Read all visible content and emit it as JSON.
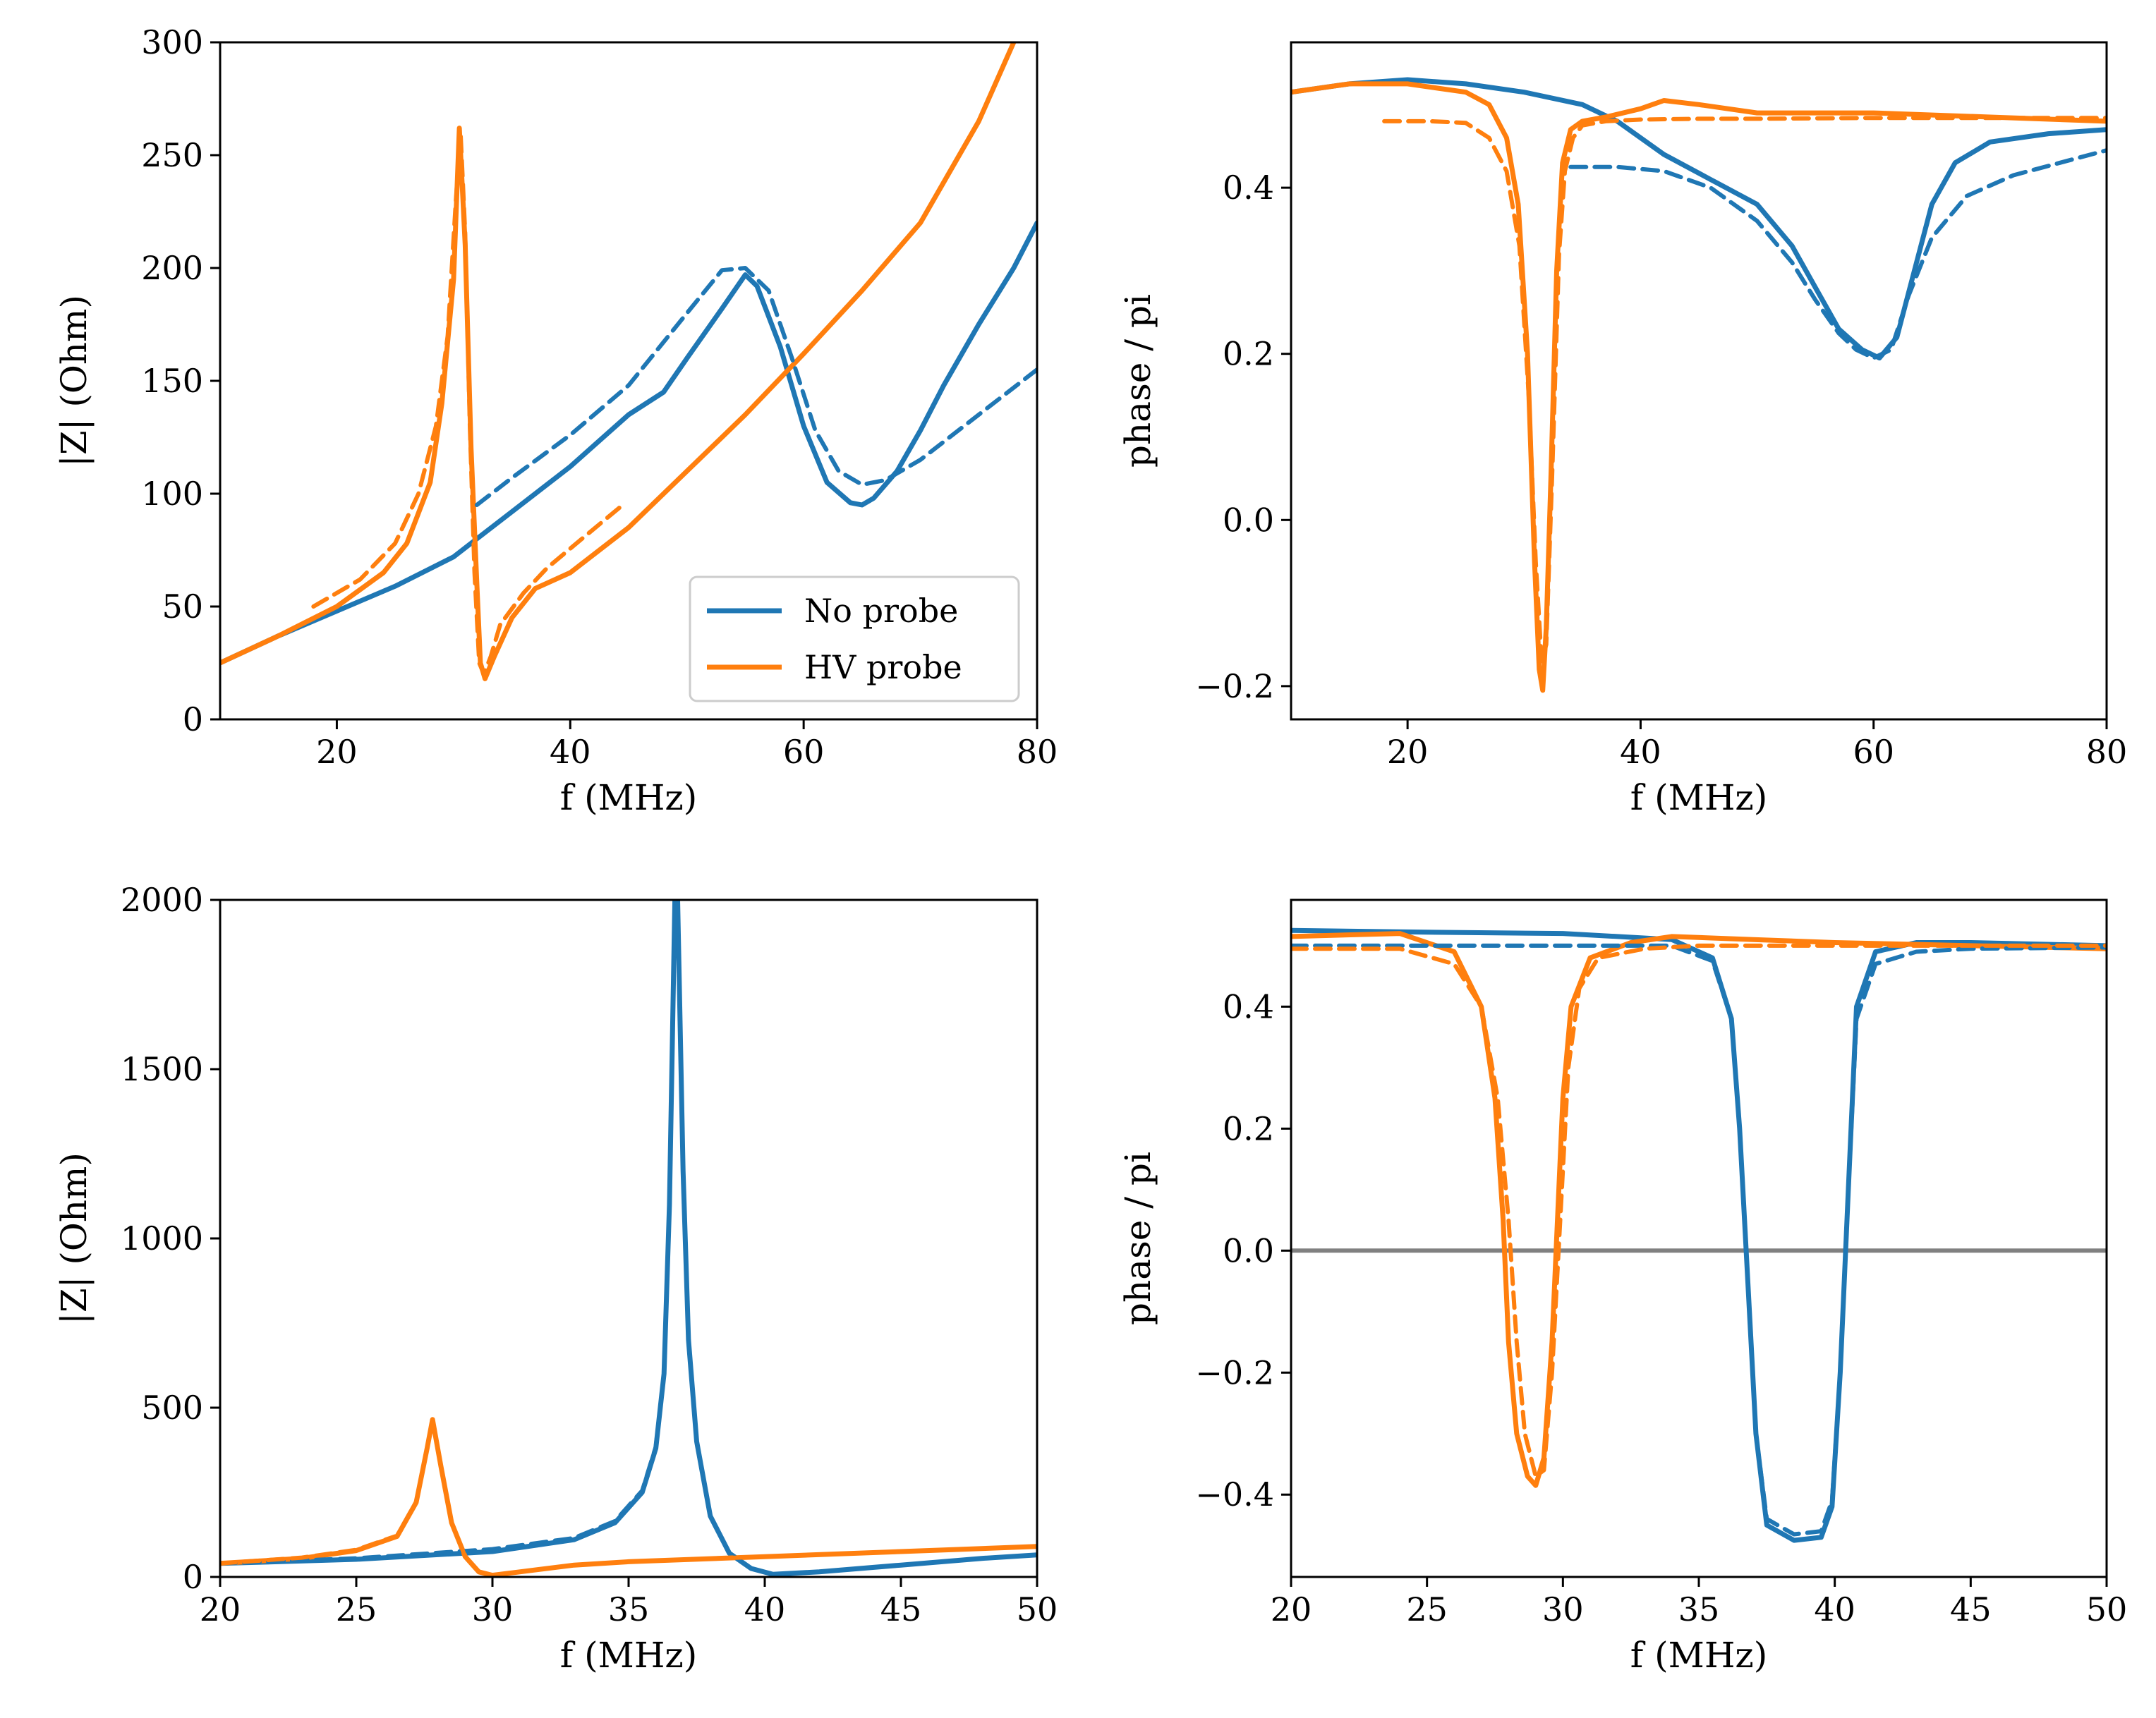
{
  "colors": {
    "no_probe": "#1f77b4",
    "hv_probe": "#ff7f0e",
    "zero_line": "#808080"
  },
  "legend": {
    "location": "lower right",
    "items": [
      {
        "label": "No probe",
        "color": "#1f77b4"
      },
      {
        "label": "HV probe",
        "color": "#ff7f0e"
      }
    ]
  },
  "chart_data": [
    {
      "id": "top-left",
      "type": "line",
      "xlabel": "f (MHz)",
      "ylabel": "|Z| (Ohm)",
      "xlim": [
        10,
        80
      ],
      "ylim": [
        0,
        300
      ],
      "xticks": [
        "20",
        "40",
        "60",
        "80"
      ],
      "yticks": [
        "0",
        "50",
        "100",
        "150",
        "200",
        "250",
        "300"
      ],
      "has_legend": true,
      "series": [
        {
          "name": "No probe",
          "style": "measured",
          "color": "#1f77b4",
          "x": [
            10,
            15,
            20,
            25,
            30,
            32,
            35,
            40,
            45,
            48,
            50,
            53,
            55,
            56,
            58,
            60,
            62,
            64,
            65,
            66,
            68,
            70,
            72,
            75,
            78,
            80
          ],
          "y": [
            25,
            37,
            48,
            59,
            72,
            80,
            92,
            112,
            135,
            145,
            160,
            182,
            197,
            192,
            165,
            130,
            105,
            96,
            95,
            98,
            110,
            128,
            148,
            175,
            200,
            220
          ]
        },
        {
          "name": "No probe fit",
          "style": "fit",
          "color": "#1f77b4",
          "x": [
            32,
            35,
            40,
            45,
            50,
            53,
            55,
            57,
            59,
            61,
            63,
            65,
            67,
            70,
            75,
            80
          ],
          "y": [
            95,
            107,
            126,
            148,
            180,
            199,
            200,
            190,
            160,
            128,
            110,
            104,
            106,
            115,
            135,
            155
          ]
        },
        {
          "name": "HV probe",
          "style": "measured",
          "color": "#ff7f0e",
          "x": [
            10,
            15,
            20,
            24,
            26,
            28,
            29,
            30,
            30.5,
            31,
            31.5,
            32,
            32.3,
            32.7,
            33.5,
            35,
            37,
            40,
            45,
            50,
            55,
            60,
            65,
            70,
            75,
            78
          ],
          "y": [
            25,
            37,
            50,
            65,
            78,
            105,
            140,
            195,
            262,
            210,
            120,
            60,
            25,
            18,
            28,
            45,
            58,
            65,
            85,
            110,
            135,
            162,
            190,
            220,
            265,
            300
          ]
        },
        {
          "name": "HV probe fit",
          "style": "fit",
          "color": "#ff7f0e",
          "x": [
            18,
            22,
            25,
            27,
            28.5,
            29.5,
            30.2,
            30.6,
            31,
            31.4,
            31.8,
            32.2,
            32.6,
            33.2,
            34,
            36,
            38,
            41,
            44.5
          ],
          "y": [
            50,
            62,
            78,
            100,
            130,
            170,
            230,
            260,
            215,
            130,
            65,
            25,
            20,
            28,
            42,
            56,
            67,
            80,
            95
          ]
        }
      ]
    },
    {
      "id": "top-right",
      "type": "line",
      "xlabel": "f (MHz)",
      "ylabel": "phase / pi",
      "xlim": [
        10,
        80
      ],
      "ylim": [
        -0.24,
        0.575
      ],
      "yticks_values": [
        -0.2,
        0.0,
        0.2,
        0.4
      ],
      "xticks": [
        "20",
        "40",
        "60",
        "80"
      ],
      "yticks": [
        "−0.2",
        "0.0",
        "0.2",
        "0.4"
      ],
      "series": [
        {
          "name": "No probe",
          "style": "measured",
          "color": "#1f77b4",
          "x": [
            10,
            15,
            20,
            25,
            30,
            35,
            38,
            42,
            46,
            50,
            53,
            55,
            57,
            59,
            60.5,
            62,
            63.5,
            65,
            67,
            70,
            75,
            80
          ],
          "y": [
            0.515,
            0.525,
            0.53,
            0.525,
            0.515,
            0.5,
            0.48,
            0.44,
            0.41,
            0.38,
            0.33,
            0.28,
            0.23,
            0.205,
            0.195,
            0.22,
            0.3,
            0.38,
            0.43,
            0.455,
            0.465,
            0.47
          ]
        },
        {
          "name": "No probe fit",
          "style": "fit",
          "color": "#1f77b4",
          "x": [
            34,
            38,
            42,
            46,
            50,
            53,
            55,
            57,
            58.5,
            60,
            61.5,
            63,
            65,
            68,
            72,
            76,
            80
          ],
          "y": [
            0.425,
            0.425,
            0.42,
            0.4,
            0.36,
            0.31,
            0.265,
            0.225,
            0.205,
            0.195,
            0.205,
            0.27,
            0.34,
            0.39,
            0.415,
            0.43,
            0.445
          ]
        },
        {
          "name": "HV probe",
          "style": "measured",
          "color": "#ff7f0e",
          "x": [
            10,
            15,
            20,
            25,
            27,
            28.5,
            29.5,
            30.3,
            30.9,
            31.3,
            31.6,
            31.9,
            32.3,
            32.8,
            33.3,
            34,
            35,
            37,
            40,
            42,
            45,
            50,
            60,
            70,
            80
          ],
          "y": [
            0.515,
            0.525,
            0.525,
            0.515,
            0.5,
            0.46,
            0.38,
            0.2,
            -0.05,
            -0.18,
            -0.205,
            -0.13,
            0.05,
            0.3,
            0.43,
            0.47,
            0.48,
            0.485,
            0.495,
            0.505,
            0.5,
            0.49,
            0.49,
            0.485,
            0.48
          ]
        },
        {
          "name": "HV probe fit",
          "style": "fit",
          "color": "#ff7f0e",
          "x": [
            18,
            22,
            25,
            27,
            28.5,
            29.6,
            30.4,
            31,
            31.5,
            31.9,
            32.4,
            33,
            33.5,
            34.2,
            35,
            37,
            40,
            45,
            50,
            60,
            70,
            80
          ],
          "y": [
            0.48,
            0.48,
            0.478,
            0.46,
            0.42,
            0.33,
            0.15,
            -0.05,
            -0.17,
            -0.15,
            0.05,
            0.32,
            0.42,
            0.46,
            0.475,
            0.48,
            0.482,
            0.483,
            0.483,
            0.484,
            0.484,
            0.484
          ]
        }
      ]
    },
    {
      "id": "bottom-left",
      "type": "line",
      "xlabel": "f (MHz)",
      "ylabel": "|Z| (Ohm)",
      "xlim": [
        20,
        50
      ],
      "ylim": [
        0,
        2000
      ],
      "xticks": [
        "20",
        "25",
        "30",
        "35",
        "40",
        "45",
        "50"
      ],
      "yticks": [
        "0",
        "500",
        "1000",
        "1500",
        "2000"
      ],
      "series": [
        {
          "name": "No probe",
          "style": "measured",
          "color": "#1f77b4",
          "x": [
            20,
            25,
            30,
            33,
            34.5,
            35.5,
            36,
            36.3,
            36.5,
            36.7,
            36.8,
            37,
            37.2,
            37.5,
            38,
            38.7,
            39.5,
            40.3,
            42,
            45,
            48,
            50
          ],
          "y": [
            40,
            52,
            75,
            110,
            160,
            250,
            380,
            600,
            1100,
            2000,
            2000,
            1200,
            700,
            400,
            180,
            70,
            25,
            8,
            15,
            35,
            55,
            65
          ]
        },
        {
          "name": "No probe fit",
          "style": "fit",
          "color": "#1f77b4",
          "x": [
            20,
            25,
            30,
            33,
            34.5,
            35.5,
            36,
            36.3,
            36.5,
            36.7,
            36.8,
            37,
            37.2,
            37.5,
            38,
            38.7,
            39.5,
            40.3,
            42,
            45,
            48,
            50
          ],
          "y": [
            40,
            55,
            82,
            115,
            165,
            255,
            385,
            600,
            1100,
            2000,
            2000,
            1200,
            700,
            400,
            180,
            70,
            25,
            8,
            15,
            35,
            55,
            65
          ]
        },
        {
          "name": "HV probe",
          "style": "measured",
          "color": "#ff7f0e",
          "x": [
            20,
            23,
            25,
            26.5,
            27.2,
            27.6,
            27.8,
            28.1,
            28.5,
            29,
            29.5,
            30,
            31,
            33,
            35,
            40,
            45,
            50
          ],
          "y": [
            40,
            55,
            78,
            120,
            220,
            380,
            465,
            330,
            160,
            60,
            15,
            5,
            15,
            35,
            45,
            60,
            75,
            90
          ]
        },
        {
          "name": "HV probe fit",
          "style": "fit",
          "color": "#ff7f0e",
          "x": [
            20,
            23,
            25,
            26.5,
            27.2,
            27.6,
            27.8,
            28.1,
            28.5,
            29,
            29.5,
            30,
            31,
            33,
            35,
            40,
            45,
            50
          ],
          "y": [
            40,
            57,
            80,
            122,
            222,
            382,
            465,
            330,
            160,
            60,
            15,
            5,
            15,
            35,
            45,
            60,
            75,
            90
          ]
        }
      ]
    },
    {
      "id": "bottom-right",
      "type": "line",
      "xlabel": "f (MHz)",
      "ylabel": "phase / pi",
      "xlim": [
        20,
        50
      ],
      "ylim": [
        -0.535,
        0.575
      ],
      "yticks_values": [
        -0.4,
        -0.2,
        0.0,
        0.2,
        0.4
      ],
      "xticks": [
        "20",
        "25",
        "30",
        "35",
        "40",
        "45",
        "50"
      ],
      "yticks": [
        "−0.4",
        "−0.2",
        "0.0",
        "0.2",
        "0.4"
      ],
      "hline": 0.0,
      "series": [
        {
          "name": "No probe",
          "style": "measured",
          "color": "#1f77b4",
          "x": [
            20,
            25,
            30,
            34,
            35.5,
            36.2,
            36.5,
            36.8,
            37.1,
            37.5,
            38.5,
            39.5,
            39.9,
            40.2,
            40.5,
            40.8,
            41.5,
            43,
            45,
            50
          ],
          "y": [
            0.525,
            0.522,
            0.52,
            0.51,
            0.48,
            0.38,
            0.2,
            -0.05,
            -0.3,
            -0.45,
            -0.475,
            -0.47,
            -0.42,
            -0.2,
            0.1,
            0.4,
            0.49,
            0.505,
            0.505,
            0.5
          ]
        },
        {
          "name": "No probe fit",
          "style": "fit",
          "color": "#1f77b4",
          "x": [
            20,
            25,
            30,
            34,
            35.5,
            36.2,
            36.5,
            36.8,
            37.1,
            37.5,
            38.5,
            39.5,
            39.9,
            40.2,
            40.5,
            40.8,
            41.5,
            43,
            45,
            50
          ],
          "y": [
            0.5,
            0.5,
            0.5,
            0.5,
            0.475,
            0.38,
            0.2,
            -0.05,
            -0.3,
            -0.44,
            -0.465,
            -0.46,
            -0.41,
            -0.2,
            0.1,
            0.38,
            0.47,
            0.49,
            0.495,
            0.497
          ]
        },
        {
          "name": "HV probe",
          "style": "measured",
          "color": "#ff7f0e",
          "x": [
            20,
            24,
            26,
            27,
            27.5,
            27.8,
            28,
            28.3,
            28.7,
            29,
            29.3,
            29.6,
            29.8,
            30,
            30.3,
            31,
            32.5,
            34,
            37,
            40,
            45,
            50
          ],
          "y": [
            0.515,
            0.52,
            0.49,
            0.4,
            0.25,
            0.05,
            -0.15,
            -0.3,
            -0.37,
            -0.385,
            -0.34,
            -0.15,
            0.05,
            0.25,
            0.4,
            0.48,
            0.505,
            0.515,
            0.51,
            0.505,
            0.5,
            0.495
          ]
        },
        {
          "name": "HV probe fit",
          "style": "fit",
          "color": "#ff7f0e",
          "x": [
            20,
            24,
            26,
            27,
            27.6,
            28,
            28.3,
            28.6,
            29,
            29.3,
            29.6,
            29.9,
            30.2,
            30.6,
            31.3,
            33,
            35,
            40,
            45,
            50
          ],
          "y": [
            0.495,
            0.495,
            0.47,
            0.4,
            0.25,
            0.05,
            -0.15,
            -0.3,
            -0.37,
            -0.36,
            -0.2,
            0.05,
            0.3,
            0.43,
            0.48,
            0.495,
            0.5,
            0.5,
            0.5,
            0.5
          ]
        }
      ]
    }
  ]
}
